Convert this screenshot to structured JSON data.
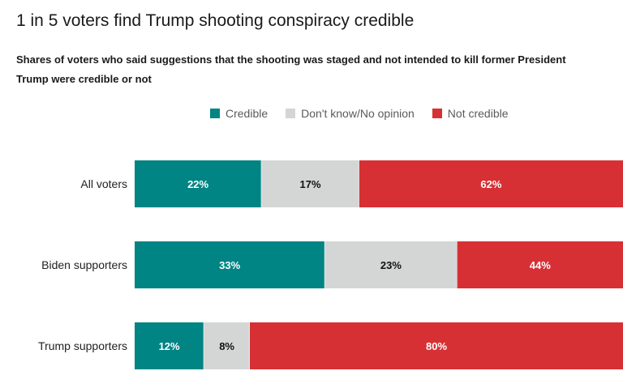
{
  "title": "1 in 5 voters find Trump shooting conspiracy credible",
  "subtitle_lines": [
    "Shares of voters who said suggestions that the shooting was staged and not intended to kill former President",
    "Trump were credible or not"
  ],
  "chart_data": {
    "type": "bar",
    "orientation": "horizontal",
    "stacked": true,
    "categories": [
      "All voters",
      "Biden supporters",
      "Trump supporters"
    ],
    "series": [
      {
        "name": "Credible",
        "values": [
          22,
          33,
          12
        ],
        "color": "#008484",
        "label_color": "#ffffff"
      },
      {
        "name": "Don't know/No opinion",
        "values": [
          17,
          23,
          8
        ],
        "color": "#d4d6d6",
        "label_color": "#111111"
      },
      {
        "name": "Not credible",
        "values": [
          62,
          44,
          80
        ],
        "color": "#d63035",
        "label_color": "#ffffff"
      }
    ],
    "value_suffix": "%",
    "legend_position": "top",
    "grid": false
  }
}
